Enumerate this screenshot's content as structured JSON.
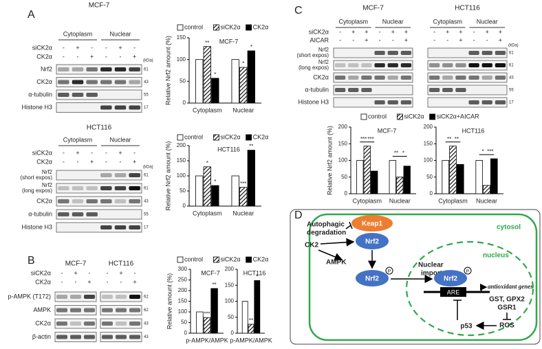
{
  "panel_labels": [
    "A",
    "B",
    "C",
    "D"
  ],
  "blots": [
    {
      "headers": [
        "MCF-7"
      ],
      "groups": [
        "Cytoplasm",
        "Nuclear"
      ],
      "conditions": [
        {
          "label": "siCK2α",
          "marks": [
            "-",
            "+",
            "-",
            "-",
            "+",
            "-"
          ]
        },
        {
          "label": "CK2α",
          "marks": [
            "-",
            "-",
            "+",
            "-",
            "-",
            "+"
          ]
        }
      ],
      "kda_header": "(kDa)",
      "rows": [
        {
          "label": "Nrf2",
          "kda": "61"
        },
        {
          "label": "CK2α",
          "kda": "43"
        },
        {
          "label": "α-tubulin",
          "kda": "55"
        },
        {
          "label": "Histone H3",
          "kda": "17"
        }
      ]
    },
    {
      "headers": [
        "HCT116"
      ],
      "groups": [
        "Cytoplasm",
        "Nuclear"
      ],
      "conditions": [
        {
          "label": "siCK2α",
          "marks": [
            "-",
            "+",
            "-",
            "-",
            "+",
            "-"
          ]
        },
        {
          "label": "CK2α",
          "marks": [
            "-",
            "-",
            "+",
            "-",
            "-",
            "+"
          ]
        }
      ],
      "kda_header": "(kDa)",
      "rows": [
        {
          "label": [
            "Nrf2",
            "(short expos)"
          ],
          "kda": "61"
        },
        {
          "label": [
            "Nrf2",
            "(long expos)"
          ],
          "kda": "61"
        },
        {
          "label": "CK2α",
          "kda": "43"
        },
        {
          "label": "α-tubulin",
          "kda": "55"
        },
        {
          "label": "Histone H3",
          "kda": "17"
        }
      ]
    },
    {
      "headers": [
        "MCF-7",
        "HCT116"
      ],
      "conditions": [
        {
          "label": "siCK2α",
          "marks": [
            "-",
            "+",
            "-",
            "-",
            "+",
            "-"
          ]
        },
        {
          "label": "CK2α",
          "marks": [
            "-",
            "-",
            "+",
            "-",
            "-",
            "+"
          ]
        }
      ],
      "rows": [
        {
          "label": "p-AMPK (T172)",
          "kda": "62"
        },
        {
          "label": "AMPK",
          "kda": "62"
        },
        {
          "label": "CK2α",
          "kda": "43"
        },
        {
          "label": "β-actin",
          "kda": "43"
        }
      ]
    },
    {
      "headers": [
        "MCF-7",
        "HCT116"
      ],
      "groups": [
        "Cytoplasm",
        "Nuclear",
        "Cytoplasm",
        "Nuclear"
      ],
      "conditions": [
        {
          "label": "siCK2α",
          "marks": [
            "-",
            "+",
            "+",
            "-",
            "+",
            "+",
            "-",
            "+",
            "+",
            "-",
            "+",
            "+"
          ]
        },
        {
          "label": "AICAR",
          "marks": [
            "-",
            "-",
            "+",
            "-",
            "-",
            "+",
            "-",
            "-",
            "+",
            "-",
            "-",
            "+"
          ]
        }
      ],
      "kda_header": "(kDa)",
      "rows": [
        {
          "label": [
            "Nrf2",
            "(short expos)"
          ],
          "kda": "61"
        },
        {
          "label": [
            "Nrf2",
            "(long expos)"
          ],
          "kda": "61"
        },
        {
          "label": "CK2α",
          "kda": "43"
        },
        {
          "label": "α-tubulin",
          "kda": "55"
        },
        {
          "label": "Histone H3",
          "kda": "17"
        }
      ]
    }
  ],
  "chart_data": [
    {
      "type": "bar",
      "title": "MCF-7",
      "y_label": "Relative Nrf2 amount (%)",
      "categories": [
        "Cytoplasm",
        "Nuclear"
      ],
      "series": [
        {
          "name": "control",
          "color": "#ffffff",
          "values": [
            100,
            100
          ]
        },
        {
          "name": "siCK2α",
          "color": "#ffffff",
          "hatch": true,
          "values": [
            130,
            82
          ],
          "annotations": [
            "**",
            "*"
          ]
        },
        {
          "name": "CK2α",
          "color": "#000000",
          "values": [
            57,
            120
          ],
          "annotations": [
            "*",
            "*"
          ]
        }
      ],
      "ylim": [
        0,
        150
      ],
      "yticks": [
        0,
        50,
        100,
        150
      ]
    },
    {
      "type": "bar",
      "title": "HCT116",
      "y_label": "Relative Nrf2 amount (%)",
      "categories": [
        "Cytoplasm",
        "Nuclear"
      ],
      "series": [
        {
          "name": "control",
          "color": "#ffffff",
          "values": [
            100,
            100
          ]
        },
        {
          "name": "siCK2α",
          "color": "#ffffff",
          "hatch": true,
          "values": [
            130,
            62
          ],
          "annotations": [
            "*",
            "***"
          ]
        },
        {
          "name": "CK2α",
          "color": "#000000",
          "values": [
            68,
            185
          ],
          "annotations": [
            "*",
            "**"
          ]
        }
      ],
      "ylim": [
        0,
        200
      ],
      "yticks": [
        0,
        50,
        100,
        150,
        200
      ]
    },
    {
      "type": "bar",
      "title": "MCF-7",
      "y_label": "Relative amount (%)",
      "categories": [
        "p-AMPK/AMPK"
      ],
      "series": [
        {
          "name": "control",
          "color": "#ffffff",
          "values": [
            100
          ]
        },
        {
          "name": "siCK2α",
          "color": "#ffffff",
          "hatch": true,
          "values": [
            73
          ],
          "annotations": [
            "***"
          ]
        },
        {
          "name": "CK2α",
          "color": "#000000",
          "values": [
            210
          ],
          "annotations": [
            "**"
          ]
        }
      ],
      "ylim": [
        0,
        300
      ],
      "yticks": [
        0,
        50,
        100,
        150,
        200,
        250,
        300
      ]
    },
    {
      "type": "bar",
      "title": "HCT116",
      "categories": [
        "p-AMPK/AMPK"
      ],
      "series": [
        {
          "color": "#ffffff",
          "values": [
            100
          ]
        },
        {
          "color": "#ffffff",
          "hatch": true,
          "values": [
            28
          ],
          "annotations": [
            "**"
          ]
        },
        {
          "color": "#000000",
          "values": [
            165
          ],
          "annotations": [
            "*"
          ]
        }
      ],
      "ylim": [
        0,
        200
      ],
      "yticks": [
        0,
        50,
        100,
        150,
        200
      ]
    },
    {
      "type": "bar",
      "title": "MCF-7",
      "y_label": "Relative Nrf2 amount (%)",
      "categories": [
        "Cytoplasm",
        "Nuclear"
      ],
      "brackets": true,
      "series": [
        {
          "name": "control",
          "color": "#ffffff",
          "values": [
            100,
            100
          ]
        },
        {
          "name": "siCK2α",
          "color": "#ffffff",
          "hatch": true,
          "values": [
            143,
            50
          ],
          "annotations": [
            "***",
            "**"
          ]
        },
        {
          "name": "siCK2α+AICAR",
          "color": "#000000",
          "values": [
            68,
            83
          ],
          "annotations": [
            "***",
            "*"
          ]
        }
      ],
      "ylim": [
        0,
        200
      ],
      "yticks": [
        0,
        50,
        100,
        150,
        200
      ]
    },
    {
      "type": "bar",
      "title": "HCT116",
      "categories": [
        "Cytoplasm",
        "Nuclear"
      ],
      "brackets": true,
      "series": [
        {
          "color": "#ffffff",
          "values": [
            100,
            100
          ]
        },
        {
          "color": "#ffffff",
          "hatch": true,
          "values": [
            143,
            25
          ],
          "annotations": [
            "**",
            "*"
          ]
        },
        {
          "color": "#000000",
          "values": [
            88,
            105
          ],
          "annotations": [
            "**",
            "***"
          ]
        }
      ],
      "ylim": [
        0,
        200
      ],
      "yticks": [
        0,
        50,
        100,
        150,
        200
      ]
    }
  ],
  "diagram": {
    "cytosol": "cytosol",
    "nucleus": "nucleus",
    "autophagic_degradation": [
      "Autophagic",
      "degradation"
    ],
    "keap1": "Keap1",
    "nrf2": "Nrf2",
    "ck2": "CK2",
    "ampk": "AMPK",
    "phospho": "P",
    "nuclear_import": [
      "Nuclear",
      "import"
    ],
    "are": "ARE",
    "antioxidant_genes": "antioxidant genes",
    "gene_list": [
      "GST, GPX2",
      "GSR1"
    ],
    "ros": "ROS",
    "p53": "p53"
  }
}
